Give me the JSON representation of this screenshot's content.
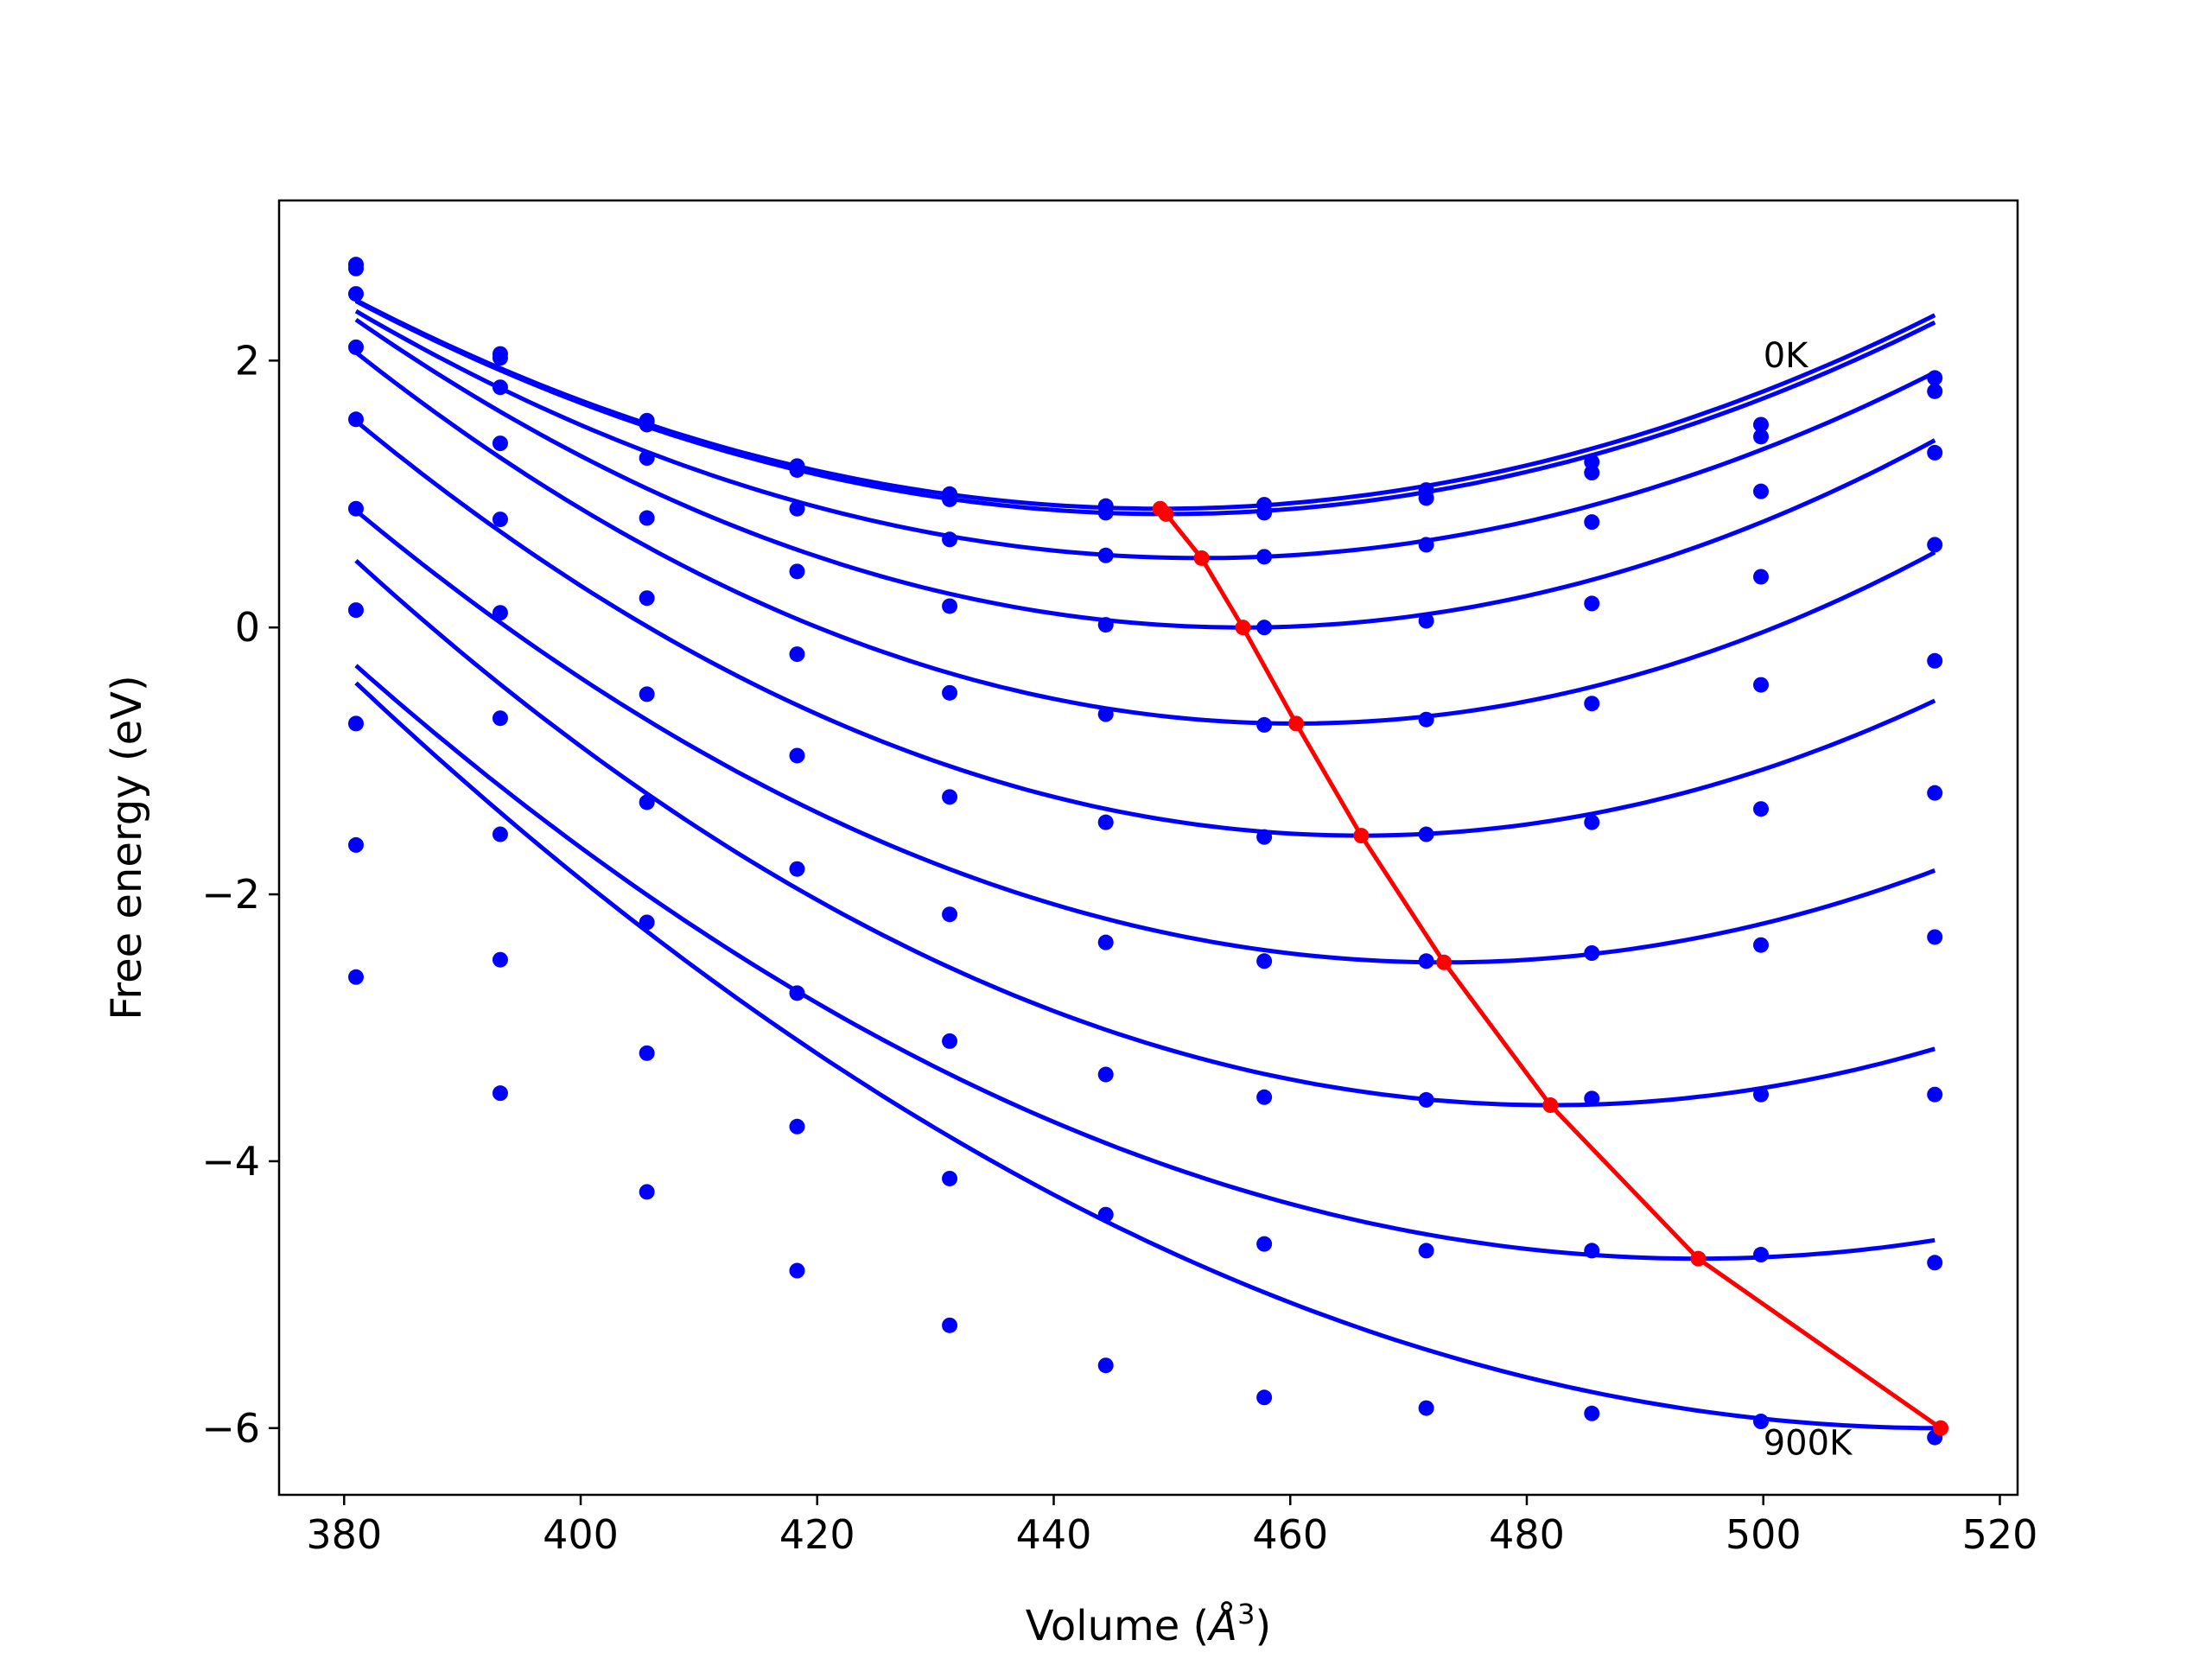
{
  "chart_data": {
    "type": "line",
    "title": "",
    "xlabel": "Volume (",
    "xlabel_symbol": "Å",
    "xlabel_exp": "3",
    "xlabel_close": ")",
    "ylabel": "Free energy (eV)",
    "xlim": [
      374.5,
      521.5
    ],
    "ylim": [
      -6.5,
      3.2
    ],
    "xticks": [
      380,
      400,
      420,
      440,
      460,
      480,
      500,
      520
    ],
    "xtick_labels": [
      "380",
      "400",
      "420",
      "440",
      "460",
      "480",
      "500",
      "520"
    ],
    "yticks": [
      -6,
      -4,
      -2,
      0,
      2
    ],
    "ytick_labels": [
      "−6",
      "−4",
      "−2",
      "0",
      "2"
    ],
    "grid": false,
    "annotations": [
      {
        "text": "0K",
        "x": 500.0,
        "y": 1.95
      },
      {
        "text": "900K",
        "x": 500.0,
        "y": -6.2
      }
    ],
    "colors": {
      "series": "#0000ff",
      "equilibrium": "#ff0000"
    },
    "x": [
      381.0,
      393.2,
      405.6,
      418.3,
      431.2,
      444.4,
      457.8,
      471.5,
      485.5,
      499.8,
      514.5
    ],
    "series": [
      {
        "values": [
          2.72,
          2.05,
          1.55,
          1.21,
          1.0,
          0.91,
          0.92,
          1.03,
          1.24,
          1.52,
          1.87
        ],
        "fit": {
          "a": 0.000338,
          "v0": 449.0,
          "c": 0.89
        }
      },
      {
        "values": [
          2.69,
          2.02,
          1.52,
          1.18,
          0.96,
          0.86,
          0.86,
          0.97,
          1.16,
          1.43,
          1.77
        ],
        "fit": {
          "a": 0.00034,
          "v0": 449.5,
          "c": 0.85
        }
      },
      {
        "values": [
          2.5,
          1.8,
          1.27,
          0.89,
          0.66,
          0.54,
          0.53,
          0.62,
          0.79,
          1.02,
          1.31
        ],
        "fit": {
          "a": 0.000362,
          "v0": 452.5,
          "c": 0.52
        }
      },
      {
        "values": [
          2.1,
          1.38,
          0.82,
          0.42,
          0.16,
          0.02,
          0.0,
          0.05,
          0.18,
          0.38,
          0.62
        ],
        "fit": {
          "a": 0.00041,
          "v0": 456.0,
          "c": 0.0
        }
      },
      {
        "values": [
          1.56,
          0.81,
          0.22,
          -0.2,
          -0.49,
          -0.65,
          -0.73,
          -0.69,
          -0.57,
          -0.43,
          -0.25
        ],
        "fit": {
          "a": 0.00044,
          "v0": 460.5,
          "c": -0.72
        }
      },
      {
        "values": [
          0.89,
          0.11,
          -0.5,
          -0.96,
          -1.27,
          -1.46,
          -1.57,
          -1.55,
          -1.46,
          -1.36,
          -1.24
        ],
        "fit": {
          "a": 0.00043,
          "v0": 466.0,
          "c": -1.56
        }
      },
      {
        "values": [
          0.13,
          -0.68,
          -1.31,
          -1.81,
          -2.15,
          -2.36,
          -2.5,
          -2.5,
          -2.44,
          -2.38,
          -2.32
        ],
        "fit": {
          "a": 0.0004,
          "v0": 473.0,
          "c": -2.51
        }
      },
      {
        "values": [
          -0.72,
          -1.55,
          -2.21,
          -2.74,
          -3.1,
          -3.35,
          -3.52,
          -3.54,
          -3.53,
          -3.5,
          -3.5
        ],
        "fit": {
          "a": 0.0004,
          "v0": 482.0,
          "c": -3.58
        }
      },
      {
        "values": [
          -1.63,
          -2.49,
          -3.19,
          -3.74,
          -4.13,
          -4.4,
          -4.62,
          -4.67,
          -4.67,
          -4.7,
          -4.76
        ],
        "fit": {
          "a": 0.000345,
          "v0": 494.5,
          "c": -4.73
        }
      },
      {
        "values": [
          -2.62,
          -3.49,
          -4.23,
          -4.82,
          -5.23,
          -5.53,
          -5.77,
          -5.85,
          -5.89,
          -5.95,
          -6.07
        ],
        "fit": {
          "a": 0.000311,
          "v0": 515.0,
          "c": -6.0
        }
      }
    ],
    "equilibrium": {
      "x": [
        449.0,
        449.5,
        452.5,
        456.0,
        460.5,
        466.0,
        473.0,
        482.0,
        494.5,
        515.0
      ],
      "y": [
        0.89,
        0.85,
        0.52,
        0.0,
        -0.72,
        -1.56,
        -2.51,
        -3.58,
        -4.73,
        -6.0
      ]
    }
  }
}
